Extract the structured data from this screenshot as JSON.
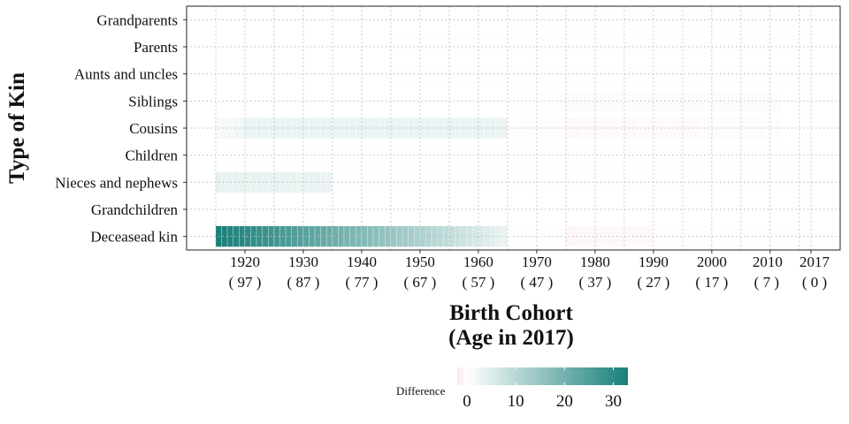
{
  "chart_data": {
    "type": "heatmap",
    "xlabel": [
      "Birth Cohort",
      "(Age in 2017)"
    ],
    "ylabel": "Type of Kin",
    "x_ticks": [
      {
        "year": 1920,
        "label": "1920",
        "sub": "( 97 )"
      },
      {
        "year": 1930,
        "label": "1930",
        "sub": "( 87 )"
      },
      {
        "year": 1940,
        "label": "1940",
        "sub": "( 77 )"
      },
      {
        "year": 1950,
        "label": "1950",
        "sub": "( 67 )"
      },
      {
        "year": 1960,
        "label": "1960",
        "sub": "( 57 )"
      },
      {
        "year": 1970,
        "label": "1970",
        "sub": "( 47 )"
      },
      {
        "year": 1980,
        "label": "1980",
        "sub": "( 37 )"
      },
      {
        "year": 1990,
        "label": "1990",
        "sub": "( 27 )"
      },
      {
        "year": 2000,
        "label": "2000",
        "sub": "( 17 )"
      },
      {
        "year": 2010,
        "label": "2010",
        "sub": "( 7 )"
      },
      {
        "year": 2017,
        "label": "2017",
        "sub": "( 0 )"
      }
    ],
    "xlim": [
      1910,
      2022
    ],
    "kin_types": [
      "Grandparents",
      "Parents",
      "Aunts and uncles",
      "Siblings",
      "Cousins",
      "Children",
      "Nieces and nephews",
      "Grandchildren",
      "Deceasead kin"
    ],
    "grid": "dotted",
    "legend": {
      "title": "Difference",
      "position": "bottom",
      "ticks": [
        0,
        10,
        20,
        30
      ],
      "range": [
        -2,
        33
      ],
      "low_color": "#fbe9e9",
      "mid_color": "#ffffff",
      "high_color": "#197f79"
    },
    "series": [
      {
        "kin": "Grandparents",
        "segments": [
          {
            "from": 1915,
            "to": 1965,
            "start": 0.1,
            "end": 0.1
          },
          {
            "from": 1965,
            "to": 2017,
            "start": 0.2,
            "end": 0.4
          }
        ]
      },
      {
        "kin": "Parents",
        "segments": [
          {
            "from": 1915,
            "to": 2017,
            "start": 0.1,
            "end": 0.2
          }
        ]
      },
      {
        "kin": "Aunts and uncles",
        "segments": [
          {
            "from": 1915,
            "to": 1945,
            "start": 0.1,
            "end": 0.1
          },
          {
            "from": 1945,
            "to": 2017,
            "start": 0.2,
            "end": 0.3
          }
        ]
      },
      {
        "kin": "Siblings",
        "segments": [
          {
            "from": 1915,
            "to": 1965,
            "start": 0.1,
            "end": 0.1
          },
          {
            "from": 1965,
            "to": 2012,
            "start": -0.3,
            "end": -0.4
          }
        ]
      },
      {
        "kin": "Cousins",
        "segments": [
          {
            "from": 1915,
            "to": 1920,
            "start": 1.5,
            "end": 2.0
          },
          {
            "from": 1920,
            "to": 1965,
            "start": 3.0,
            "end": 3.0
          },
          {
            "from": 1965,
            "to": 1975,
            "start": -0.2,
            "end": -0.3
          },
          {
            "from": 1975,
            "to": 2012,
            "start": -0.6,
            "end": -0.3
          }
        ]
      },
      {
        "kin": "Children",
        "segments": [
          {
            "from": 1915,
            "to": 1965,
            "start": -0.1,
            "end": -0.1
          },
          {
            "from": 1965,
            "to": 2017,
            "start": -0.1,
            "end": -0.1
          }
        ]
      },
      {
        "kin": "Nieces and nephews",
        "segments": [
          {
            "from": 1915,
            "to": 1935,
            "start": 3.5,
            "end": 3.0
          },
          {
            "from": 1935,
            "to": 1965,
            "start": 0.2,
            "end": 0.2
          },
          {
            "from": 1965,
            "to": 2017,
            "start": -0.2,
            "end": -0.2
          }
        ]
      },
      {
        "kin": "Grandchildren",
        "segments": [
          {
            "from": 1915,
            "to": 2017,
            "start": 0.1,
            "end": 0.1
          }
        ]
      },
      {
        "kin": "Deceasead kin",
        "segments": [
          {
            "from": 1915,
            "to": 1965,
            "start": 33.0,
            "end": 3.0
          },
          {
            "from": 1965,
            "to": 1975,
            "start": 0.3,
            "end": 0.2
          },
          {
            "from": 1975,
            "to": 1990,
            "start": -0.8,
            "end": -0.6
          },
          {
            "from": 1990,
            "to": 2017,
            "start": -0.1,
            "end": -0.1
          }
        ]
      }
    ]
  }
}
